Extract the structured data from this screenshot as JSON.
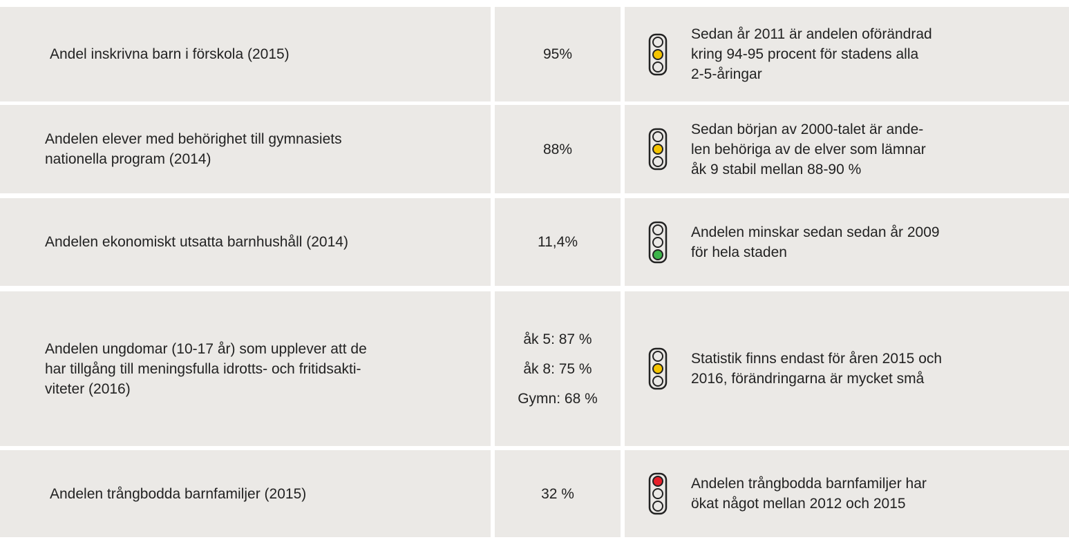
{
  "table": {
    "rows": [
      {
        "indicator": [
          "Andel inskrivna barn i förskola (2015)"
        ],
        "values": [
          "95%"
        ],
        "light": "yellow",
        "comment": [
          "Sedan år 2011 är andelen  oförändrad",
          "kring 94-95 procent för stadens alla",
          "2-5-åringar"
        ]
      },
      {
        "indicator": [
          "Andelen elever med behörighet till gymnasiets",
          "nationella program (2014)"
        ],
        "values": [
          "88%"
        ],
        "light": "yellow",
        "comment": [
          "Sedan början av 2000-talet är ande-",
          "len behöriga av de elver som lämnar",
          "åk 9  stabil mellan 88-90 %"
        ]
      },
      {
        "indicator": [
          "Andelen ekonomiskt utsatta barnhushåll (2014)"
        ],
        "values": [
          "11,4%"
        ],
        "light": "green",
        "comment": [
          "Andelen minskar sedan sedan år 2009",
          "för hela staden"
        ]
      },
      {
        "indicator": [
          "Andelen ungdomar (10-17 år) som upplever att de",
          "har tillgång till meningsfulla idrotts- och fritidsakti-",
          "viteter (2016)"
        ],
        "values": [
          "åk 5: 87 %",
          "åk 8: 75 %",
          "Gymn: 68 %"
        ],
        "light": "yellow",
        "comment": [
          "Statistik finns endast för åren 2015 och",
          "2016, förändringarna är mycket små"
        ]
      },
      {
        "indicator": [
          "Andelen trångbodda barnfamiljer (2015)"
        ],
        "values": [
          "32 %"
        ],
        "light": "red",
        "comment": [
          "Andelen trångbodda barnfamiljer har",
          "ökat något mellan 2012 och 2015"
        ]
      }
    ]
  }
}
